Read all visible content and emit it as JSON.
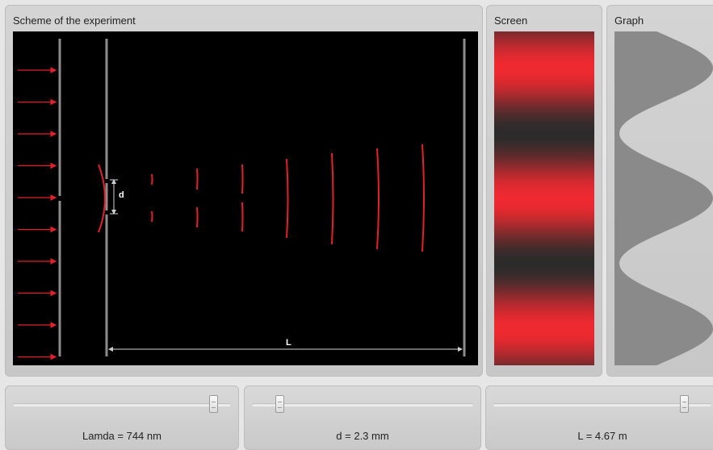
{
  "panels": {
    "scheme_title": "Scheme of the experiment",
    "screen_title": "Screen",
    "graph_title": "Graph"
  },
  "scheme": {
    "d_label": "d",
    "L_label": "L",
    "wave_color": "#e0212b",
    "incoming_rays": 10
  },
  "controls": {
    "lambda": {
      "label": "Lamda = 744 nm",
      "value": 744,
      "unit": "nm",
      "fraction": 0.94
    },
    "d": {
      "label": "d = 2.3 mm",
      "value": 2.3,
      "unit": "mm",
      "fraction": 0.11
    },
    "L": {
      "label": "L = 4.67 m",
      "value": 4.67,
      "unit": "m",
      "fraction": 0.89
    }
  },
  "pattern": {
    "fringe_color": "#ef2a30",
    "dark_color": "#2b2b2b",
    "bright_positions": [
      0.11,
      0.5,
      0.89
    ]
  }
}
